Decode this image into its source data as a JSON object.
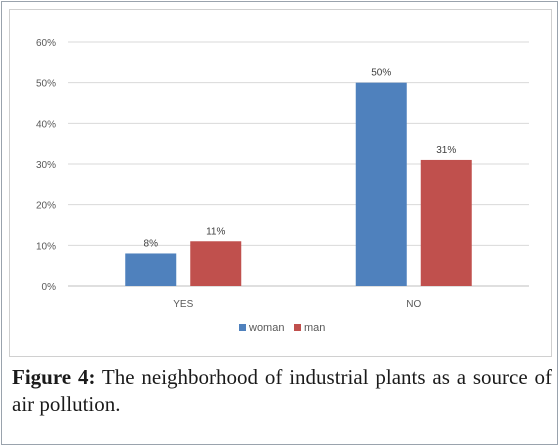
{
  "chart_data": {
    "type": "bar",
    "categories": [
      "YES",
      "NO"
    ],
    "series": [
      {
        "name": "woman",
        "color": "#4f81bd",
        "values": [
          8,
          50
        ],
        "labels": [
          "8%",
          "50%"
        ]
      },
      {
        "name": "man",
        "color": "#c0504d",
        "values": [
          11,
          31
        ],
        "labels": [
          "11%",
          "31%"
        ]
      }
    ],
    "ylim": [
      0,
      60
    ],
    "yticks": [
      0,
      10,
      20,
      30,
      40,
      50,
      60
    ],
    "ytick_labels": [
      "0%",
      "10%",
      "20%",
      "30%",
      "40%",
      "50%",
      "60%"
    ],
    "grid": true,
    "legend": "bottom-center"
  },
  "caption": {
    "label": "Figure 4:",
    "text": "The neighborhood of industrial plants as a source of air pollution."
  }
}
